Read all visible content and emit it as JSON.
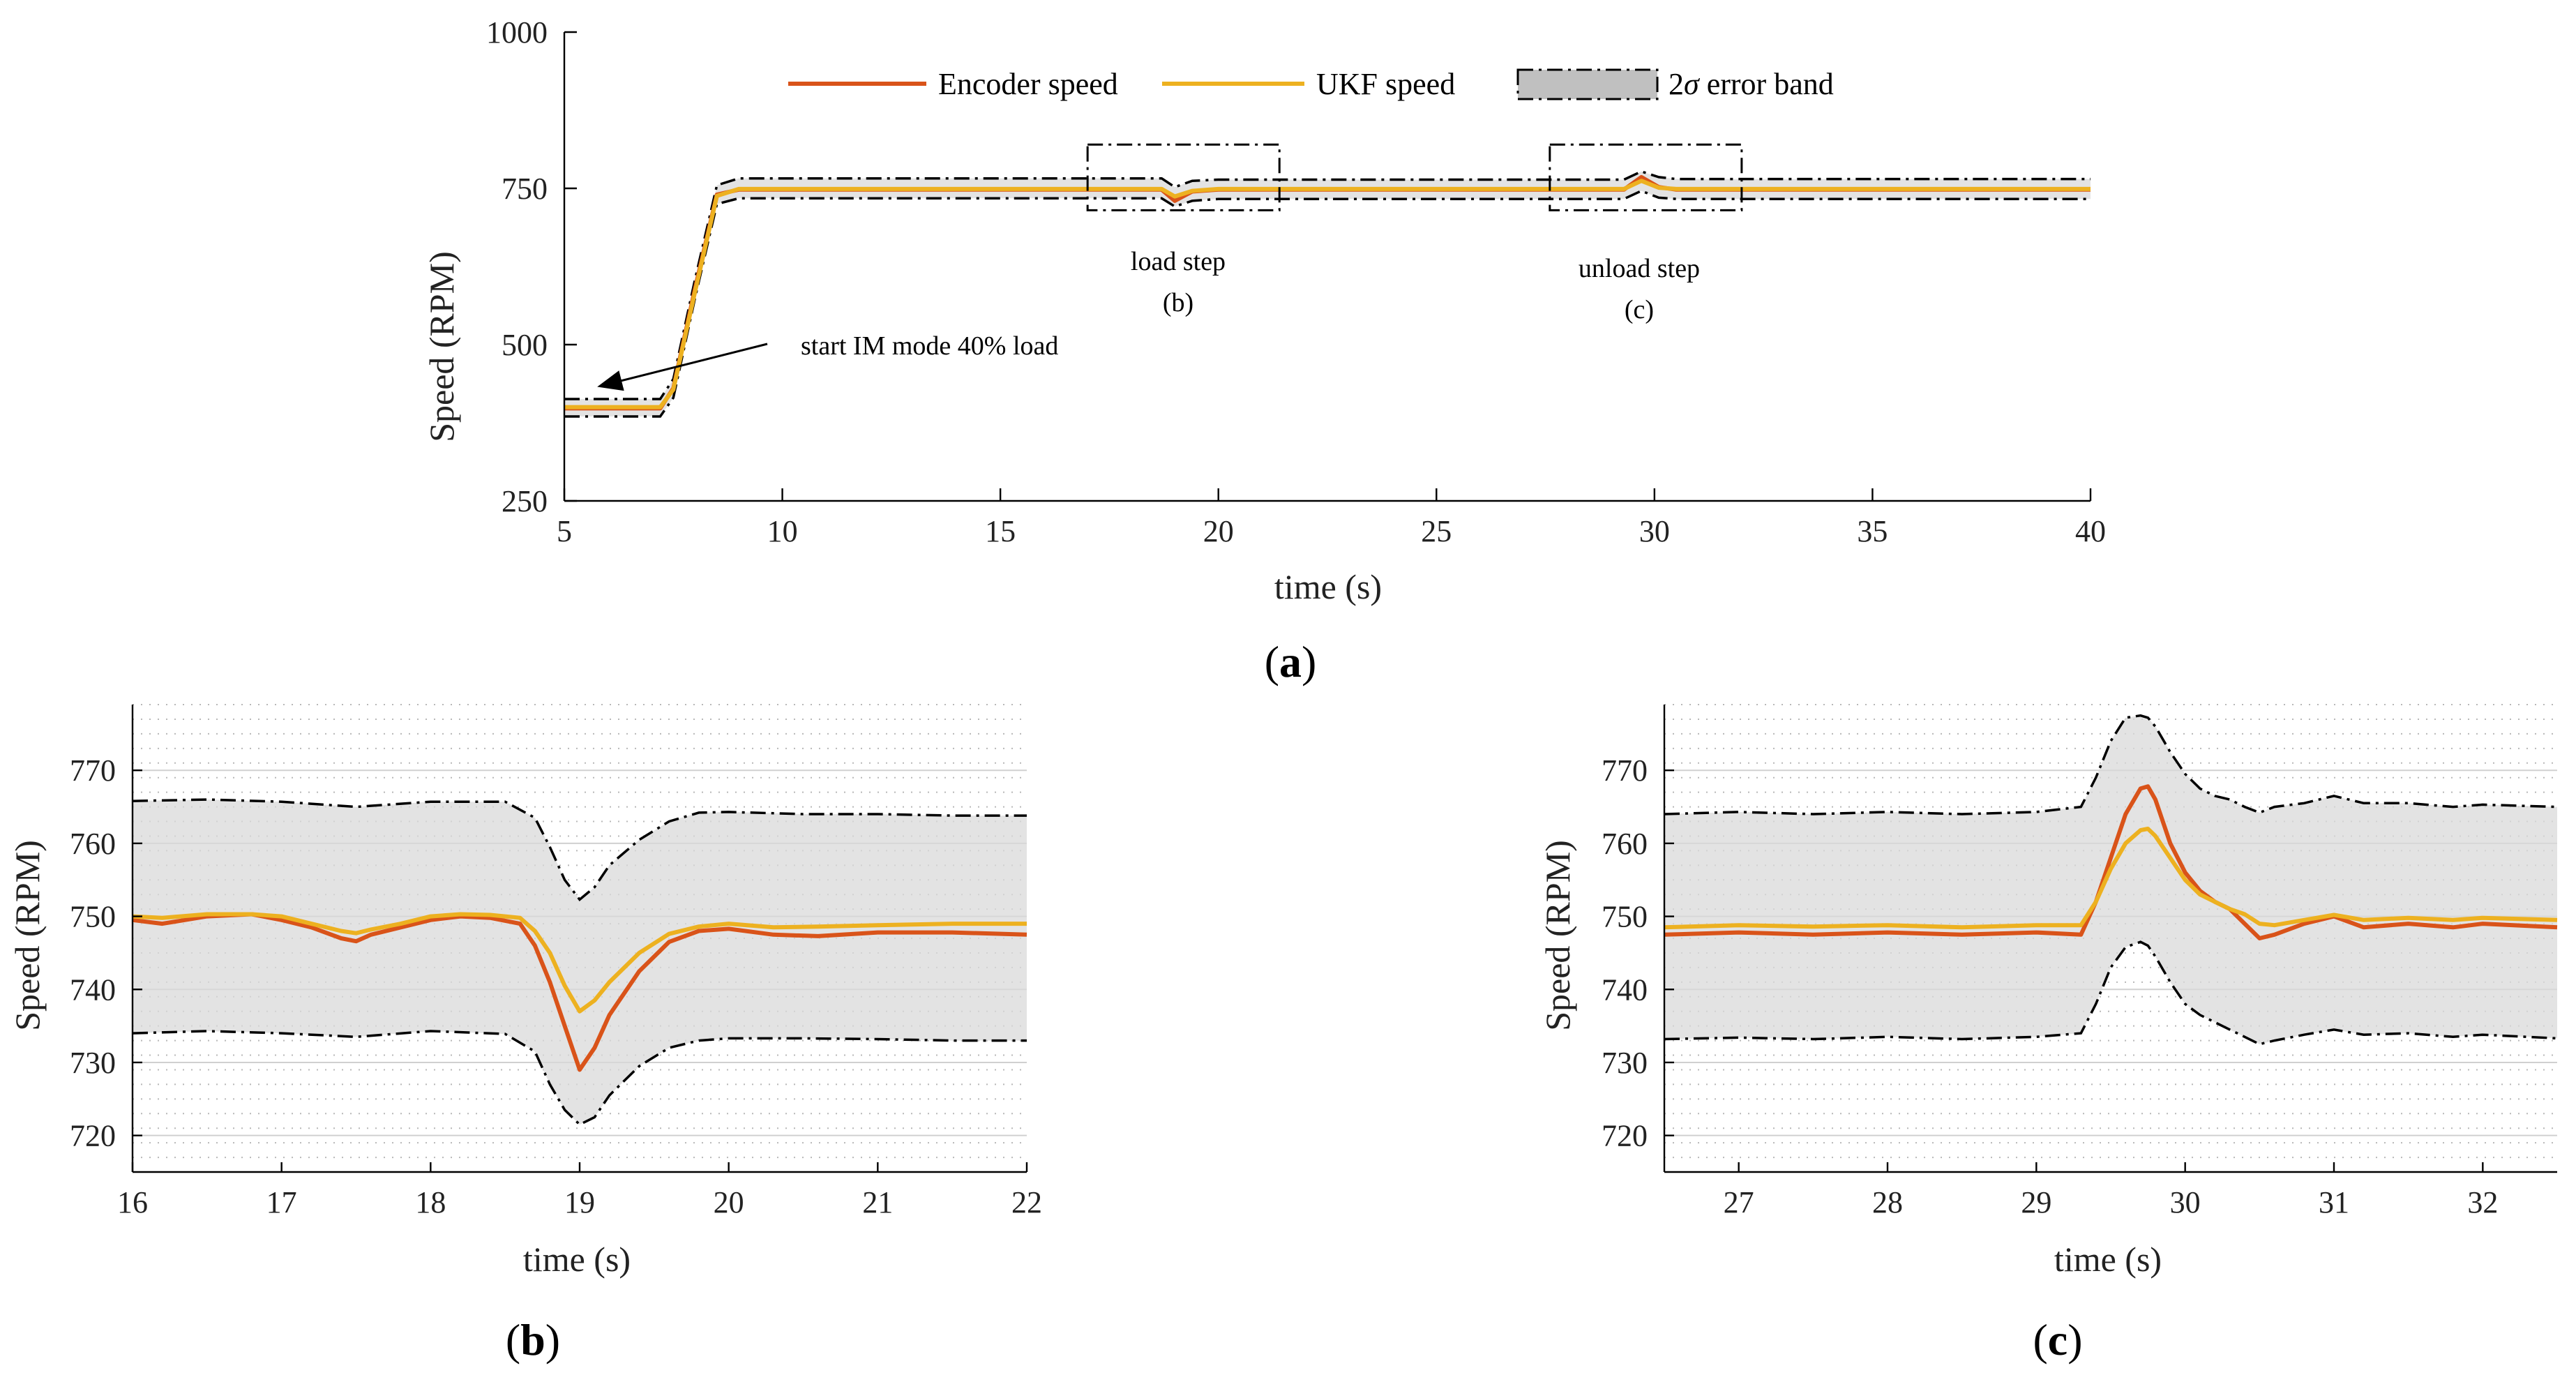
{
  "legend": {
    "encoder": "Encoder speed",
    "ukf": "UKF speed",
    "band_prefix": "2",
    "band_sigma": "σ",
    "band_suffix": " error band"
  },
  "colors": {
    "encoder": "#d95319",
    "ukf": "#edb120",
    "band": "#d9d9d9"
  },
  "panels": {
    "a": {
      "label_open": "(",
      "label_letter": "a",
      "label_close": ")"
    },
    "b": {
      "label_open": "(",
      "label_letter": "b",
      "label_close": ")"
    },
    "c": {
      "label_open": "(",
      "label_letter": "c",
      "label_close": ")"
    }
  },
  "annotations": {
    "start": "start IM mode 40% load",
    "load_step": "load step",
    "load_step_ref": "(b)",
    "unload_step": "unload step",
    "unload_step_ref": "(c)"
  },
  "chart_data": [
    {
      "id": "a",
      "type": "line",
      "xlabel": "time (s)",
      "ylabel": "Speed (RPM)",
      "xlim": [
        5,
        40
      ],
      "ylim": [
        250,
        1000
      ],
      "xticks": [
        5,
        10,
        15,
        20,
        25,
        30,
        35,
        40
      ],
      "yticks": [
        250,
        500,
        750,
        1000
      ],
      "grid": false,
      "legend_position": "top",
      "zoom_regions": [
        {
          "name": "load step",
          "ref": "(b)",
          "x": [
            17,
            21.4
          ],
          "y": [
            715,
            820
          ]
        },
        {
          "name": "unload step",
          "ref": "(c)",
          "x": [
            27.6,
            32
          ],
          "y": [
            715,
            820
          ]
        }
      ],
      "series": [
        {
          "name": "Encoder speed",
          "x": [
            5,
            7.2,
            7.5,
            8,
            8.5,
            9,
            18.7,
            19,
            19.4,
            20,
            29.3,
            29.7,
            30.1,
            30.5,
            40
          ],
          "y": [
            398,
            398,
            430,
            590,
            740,
            748,
            748,
            730,
            745,
            748,
            748,
            768,
            752,
            748,
            748
          ]
        },
        {
          "name": "UKF speed",
          "x": [
            5,
            7.2,
            7.5,
            8,
            8.5,
            9,
            18.7,
            19,
            19.4,
            20,
            29.3,
            29.7,
            30.1,
            30.5,
            40
          ],
          "y": [
            400,
            400,
            428,
            585,
            738,
            749,
            749,
            737,
            746,
            749,
            749,
            762,
            751,
            749,
            749
          ]
        },
        {
          "name": "2σ error band upper",
          "x": [
            5,
            7.2,
            7.5,
            8,
            8.5,
            9,
            18.7,
            19,
            19.4,
            20,
            29.3,
            29.7,
            30.1,
            30.5,
            40
          ],
          "y": [
            413,
            413,
            445,
            605,
            755,
            766,
            766,
            752,
            762,
            764,
            764,
            777,
            768,
            765,
            765
          ]
        },
        {
          "name": "2σ error band lower",
          "x": [
            5,
            7.2,
            7.5,
            8,
            8.5,
            9,
            18.7,
            19,
            19.4,
            20,
            29.3,
            29.7,
            30.1,
            30.5,
            40
          ],
          "y": [
            385,
            385,
            415,
            575,
            725,
            734,
            734,
            721,
            730,
            733,
            733,
            746,
            735,
            733,
            733
          ]
        }
      ]
    },
    {
      "id": "b",
      "type": "line",
      "xlabel": "time (s)",
      "ylabel": "Speed (RPM)",
      "xlim": [
        16,
        22
      ],
      "ylim": [
        715,
        779
      ],
      "xticks": [
        16,
        17,
        18,
        19,
        20,
        21,
        22
      ],
      "yticks": [
        720,
        730,
        740,
        750,
        760,
        770
      ],
      "grid": true,
      "series": [
        {
          "name": "Encoder speed",
          "x": [
            16,
            16.2,
            16.5,
            16.8,
            17,
            17.2,
            17.4,
            17.5,
            17.6,
            17.8,
            18,
            18.2,
            18.4,
            18.6,
            18.7,
            18.8,
            18.9,
            19,
            19.1,
            19.2,
            19.4,
            19.6,
            19.8,
            20,
            20.3,
            20.6,
            21,
            21.5,
            22
          ],
          "y": [
            749.5,
            749,
            750,
            750.3,
            749.5,
            748.5,
            747,
            746.6,
            747.5,
            748.5,
            749.5,
            750,
            749.8,
            749,
            746,
            741,
            735,
            729,
            732,
            736.5,
            742.5,
            746.5,
            748,
            748.3,
            747.5,
            747.3,
            747.8,
            747.8,
            747.5
          ]
        },
        {
          "name": "UKF speed",
          "x": [
            16,
            16.2,
            16.5,
            16.8,
            17,
            17.2,
            17.4,
            17.5,
            17.6,
            17.8,
            18,
            18.2,
            18.4,
            18.6,
            18.7,
            18.8,
            18.9,
            19,
            19.1,
            19.2,
            19.4,
            19.6,
            19.8,
            20,
            20.3,
            20.6,
            21,
            21.5,
            22
          ],
          "y": [
            750,
            749.8,
            750.3,
            750.3,
            750,
            749,
            748,
            747.7,
            748.2,
            749,
            750,
            750.3,
            750.2,
            749.8,
            748,
            745,
            740.5,
            737,
            738.5,
            741,
            745,
            747.6,
            748.6,
            749,
            748.5,
            748.6,
            748.8,
            749,
            749
          ]
        },
        {
          "name": "2σ error band upper",
          "x": [
            16,
            16.5,
            17,
            17.5,
            18,
            18.5,
            18.7,
            18.8,
            18.9,
            19,
            19.1,
            19.2,
            19.4,
            19.6,
            19.8,
            20,
            20.5,
            21,
            21.5,
            22
          ],
          "y": [
            765.8,
            766,
            765.7,
            765,
            765.7,
            765.7,
            763.5,
            759.5,
            755,
            752.3,
            754,
            757,
            760.5,
            763,
            764.2,
            764.3,
            764,
            764,
            763.8,
            763.8
          ]
        },
        {
          "name": "2σ error band lower",
          "x": [
            16,
            16.5,
            17,
            17.5,
            18,
            18.5,
            18.7,
            18.8,
            18.9,
            19,
            19.1,
            19.2,
            19.4,
            19.6,
            19.8,
            20,
            20.5,
            21,
            21.5,
            22
          ],
          "y": [
            734,
            734.3,
            734,
            733.5,
            734.3,
            733.9,
            731.5,
            727,
            723.5,
            721.5,
            722.5,
            725.5,
            729.5,
            732,
            733,
            733.3,
            733.3,
            733.2,
            733,
            733
          ]
        }
      ]
    },
    {
      "id": "c",
      "type": "line",
      "xlabel": "time (s)",
      "ylabel": "Speed (RPM)",
      "xlim": [
        26.5,
        32.5
      ],
      "ylim": [
        715,
        779
      ],
      "xticks": [
        27,
        28,
        29,
        30,
        31,
        32
      ],
      "yticks": [
        720,
        730,
        740,
        750,
        760,
        770
      ],
      "grid": true,
      "series": [
        {
          "name": "Encoder speed",
          "x": [
            26.5,
            27,
            27.5,
            28,
            28.5,
            29,
            29.3,
            29.4,
            29.5,
            29.6,
            29.7,
            29.75,
            29.8,
            29.9,
            30,
            30.1,
            30.2,
            30.3,
            30.4,
            30.5,
            30.6,
            30.8,
            31,
            31.2,
            31.5,
            31.8,
            32,
            32.5
          ],
          "y": [
            747.5,
            747.8,
            747.5,
            747.8,
            747.5,
            747.8,
            747.5,
            752,
            758,
            764,
            767.5,
            767.8,
            766,
            760,
            756,
            753.5,
            752,
            751,
            749,
            747,
            747.5,
            749,
            750,
            748.5,
            749,
            748.5,
            749,
            748.5
          ]
        },
        {
          "name": "UKF speed",
          "x": [
            26.5,
            27,
            27.5,
            28,
            28.5,
            29,
            29.3,
            29.4,
            29.5,
            29.6,
            29.7,
            29.75,
            29.8,
            29.9,
            30,
            30.1,
            30.2,
            30.3,
            30.4,
            30.5,
            30.6,
            30.8,
            31,
            31.2,
            31.5,
            31.8,
            32,
            32.5
          ],
          "y": [
            748.5,
            748.8,
            748.6,
            748.8,
            748.5,
            748.8,
            748.8,
            752,
            756.5,
            760,
            761.8,
            762,
            761,
            758,
            755,
            753,
            752,
            751,
            750.3,
            749,
            748.8,
            749.5,
            750.2,
            749.5,
            749.8,
            749.5,
            749.8,
            749.5
          ]
        },
        {
          "name": "2σ error band upper",
          "x": [
            26.5,
            27,
            27.5,
            28,
            28.5,
            29,
            29.3,
            29.4,
            29.5,
            29.6,
            29.7,
            29.75,
            29.8,
            29.9,
            30,
            30.1,
            30.2,
            30.3,
            30.4,
            30.5,
            30.6,
            30.8,
            31,
            31.2,
            31.5,
            31.8,
            32,
            32.5
          ],
          "y": [
            764,
            764.3,
            764,
            764.3,
            764,
            764.3,
            765,
            769,
            774,
            777.2,
            777.5,
            777.2,
            776,
            772.5,
            769.5,
            767.5,
            766.5,
            766,
            765,
            764.2,
            765,
            765.5,
            766.5,
            765.5,
            765.5,
            765,
            765.3,
            765
          ]
        },
        {
          "name": "2σ error band lower",
          "x": [
            26.5,
            27,
            27.5,
            28,
            28.5,
            29,
            29.3,
            29.4,
            29.5,
            29.6,
            29.7,
            29.75,
            29.8,
            29.9,
            30,
            30.1,
            30.2,
            30.3,
            30.4,
            30.5,
            30.6,
            30.8,
            31,
            31.2,
            31.5,
            31.8,
            32,
            32.5
          ],
          "y": [
            733.2,
            733.4,
            733.2,
            733.5,
            733.2,
            733.5,
            734,
            738,
            743,
            745.8,
            746.5,
            746,
            744.5,
            741,
            738,
            736.5,
            735.5,
            734.5,
            733.5,
            732.5,
            733,
            733.8,
            734.5,
            733.8,
            734,
            733.5,
            733.8,
            733.3
          ]
        }
      ]
    }
  ]
}
